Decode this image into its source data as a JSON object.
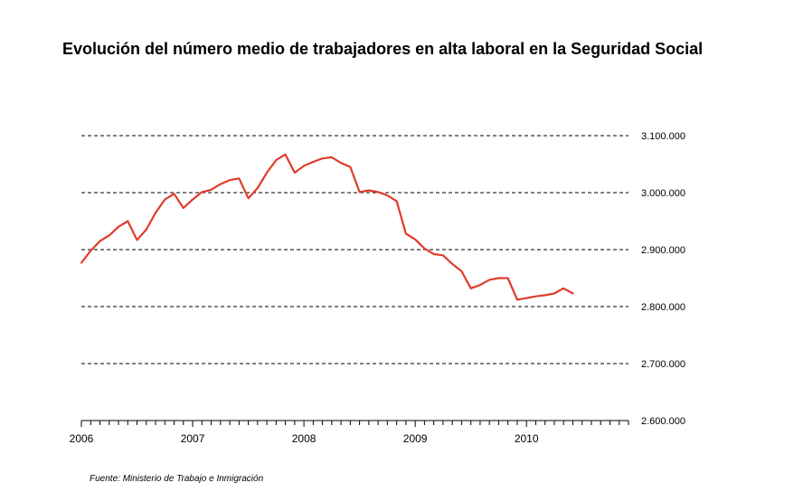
{
  "title": "Evolución del número medio de trabajadores en alta laboral en la Seguridad Social",
  "source": "Fuente: Ministerio de Trabajo e Inmigración",
  "chart_data": {
    "type": "line",
    "title": "Evolución del número medio de trabajadores en alta laboral en la Seguridad Social",
    "xlabel": "",
    "ylabel": "",
    "x_ticks": [
      "2006",
      "2007",
      "2008",
      "2009",
      "2010"
    ],
    "y_ticks": [
      "2.600.000",
      "2.700.000",
      "2.800.000",
      "2.900.000",
      "3.000.000",
      "3.100.000"
    ],
    "xlim": [
      2006.0,
      2010.917
    ],
    "ylim": [
      2600000,
      3100000
    ],
    "grid": "horizontal dashed",
    "legend": "none",
    "line_color": "#e03c2c",
    "series": [
      {
        "x": [
          2006.0,
          2006.083,
          2006.167,
          2006.25,
          2006.333,
          2006.417,
          2006.5,
          2006.583,
          2006.667,
          2006.75,
          2006.833,
          2006.917,
          2007.0,
          2007.083,
          2007.167,
          2007.25,
          2007.333,
          2007.417,
          2007.5,
          2007.583,
          2007.667,
          2007.75,
          2007.833,
          2007.917,
          2008.0,
          2008.083,
          2008.167,
          2008.25,
          2008.333,
          2008.417,
          2008.5,
          2008.583,
          2008.667,
          2008.75,
          2008.833,
          2008.917,
          2009.0,
          2009.083,
          2009.167,
          2009.25,
          2009.333,
          2009.417,
          2009.5,
          2009.583,
          2009.667,
          2009.75,
          2009.833,
          2009.917,
          2010.0,
          2010.083,
          2010.167,
          2010.25,
          2010.333,
          2010.417
        ],
        "y": [
          2877000,
          2898000,
          2915000,
          2925000,
          2940000,
          2950000,
          2917000,
          2935000,
          2965000,
          2988000,
          2998000,
          2973000,
          2988000,
          3001000,
          3005000,
          3015000,
          3022000,
          3025000,
          2990000,
          3008000,
          3035000,
          3057000,
          3067000,
          3035000,
          3047000,
          3054000,
          3060000,
          3062000,
          3052000,
          3045000,
          3001000,
          3004000,
          3001000,
          2995000,
          2985000,
          2928000,
          2918000,
          2902000,
          2892000,
          2890000,
          2875000,
          2862000,
          2832000,
          2838000,
          2847000,
          2850000,
          2850000,
          2812000,
          2815000,
          2818000,
          2820000,
          2823000,
          2832000,
          2823000
        ]
      }
    ]
  }
}
